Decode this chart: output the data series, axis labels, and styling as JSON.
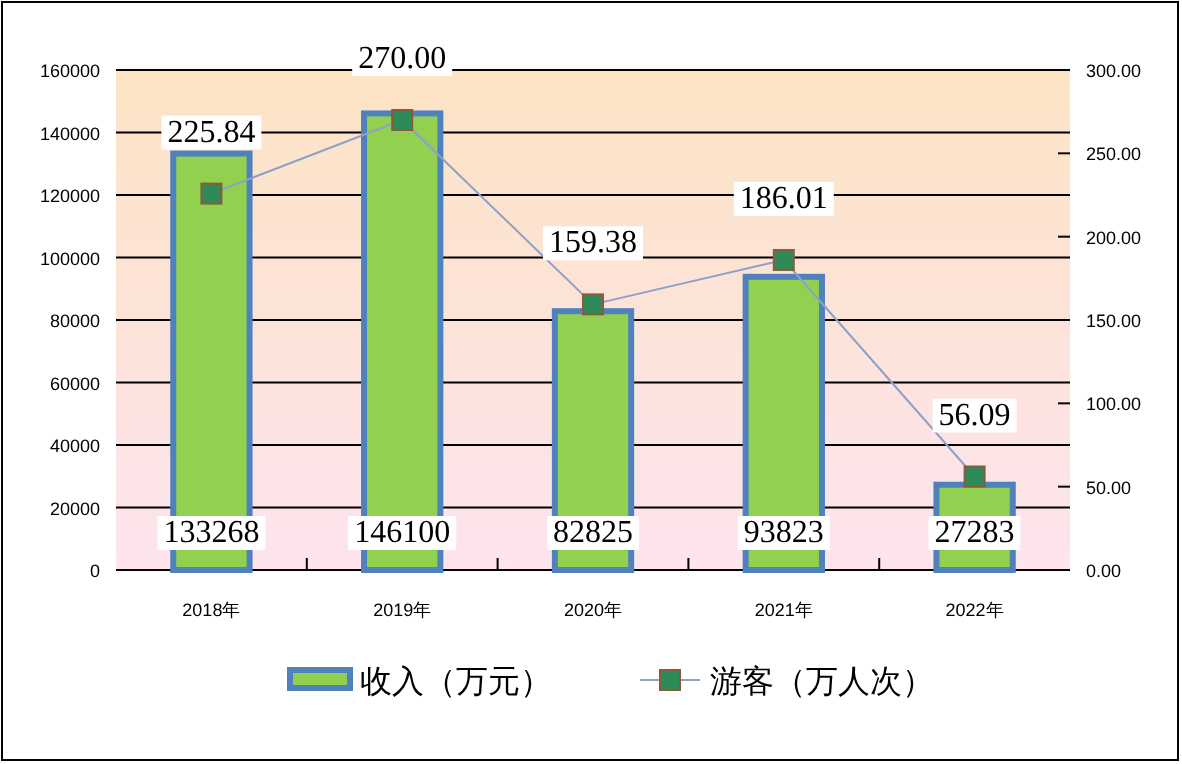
{
  "chart_data": {
    "type": "bar",
    "categories": [
      "2018年",
      "2019年",
      "2020年",
      "2021年",
      "2022年"
    ],
    "series": [
      {
        "name": "收入（万元）",
        "color": "#92d050",
        "values": [
          133268,
          146100,
          82825,
          93823,
          27283
        ]
      },
      {
        "name": "游客（万人次）",
        "type": "line",
        "axis": "y2",
        "color": "#2e8b57",
        "values": [
          225.84,
          270.0,
          159.38,
          186.01,
          56.09
        ],
        "value_labels": [
          "225.84",
          "270.00",
          "159.38",
          "186.01",
          "56.09"
        ]
      }
    ],
    "ylim": [
      0,
      160000
    ],
    "yticks": [
      0,
      20000,
      40000,
      60000,
      80000,
      100000,
      120000,
      140000,
      160000
    ],
    "y2lim": [
      0,
      300
    ],
    "y2ticks": [
      {
        "value": 0,
        "label": "0.00"
      },
      {
        "value": 50,
        "label": "50.00"
      },
      {
        "value": 100,
        "label": "100.00"
      },
      {
        "value": 150,
        "label": "150.00"
      },
      {
        "value": 200,
        "label": "200.00"
      },
      {
        "value": 250,
        "label": "250.00"
      },
      {
        "value": 300,
        "label": "300.00"
      }
    ],
    "grid": "y",
    "legend": "bottom",
    "marker": "square",
    "data_labels": true
  }
}
